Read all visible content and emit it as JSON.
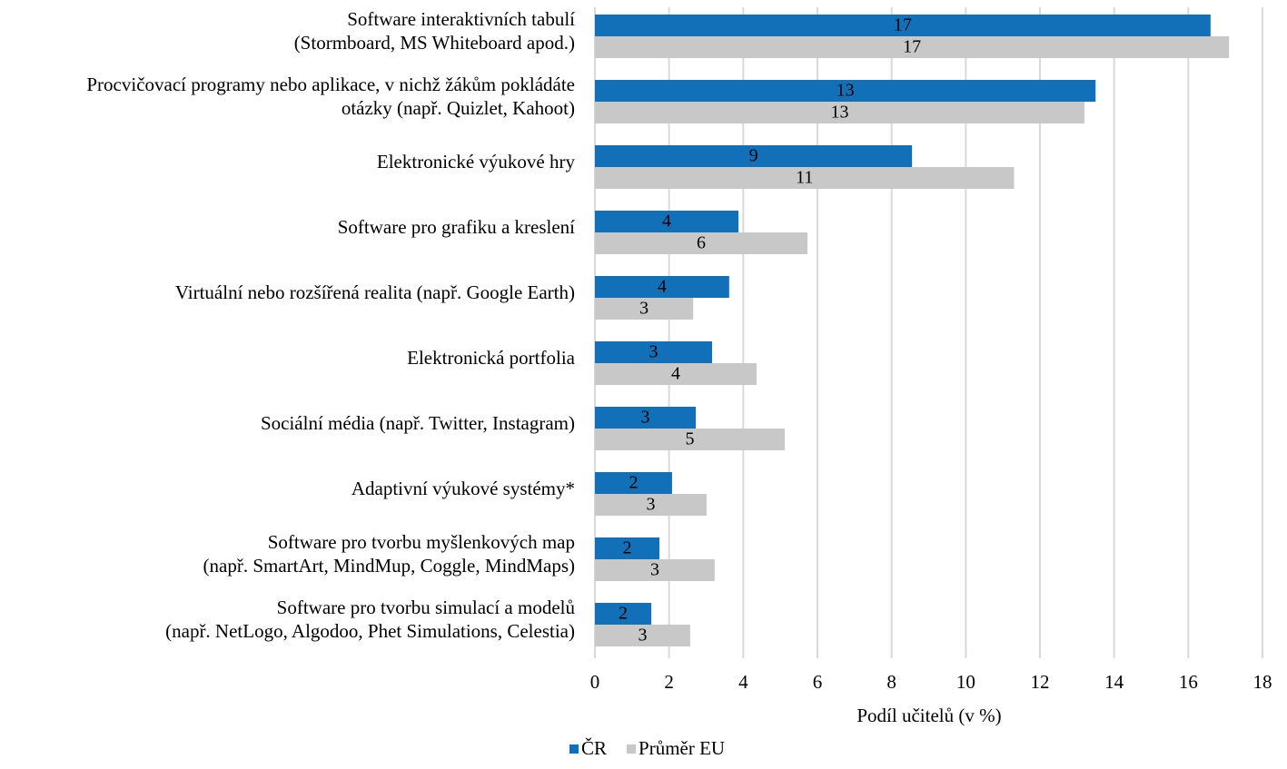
{
  "chart_data": {
    "type": "bar",
    "orientation": "horizontal",
    "categories": [
      [
        "Software interaktivních tabulí",
        "(Stormboard, MS Whiteboard apod.)"
      ],
      [
        "Procvičovací programy nebo aplikace, v nichž žákům pokládáte",
        "otázky (např. Quizlet, Kahoot)"
      ],
      [
        "Elektronické výukové hry"
      ],
      [
        "Software pro grafiku a kreslení"
      ],
      [
        "Virtuální nebo rozšířená realita (např. Google Earth)"
      ],
      [
        "Elektronická portfolia"
      ],
      [
        "Sociální média (např. Twitter, Instagram)"
      ],
      [
        "Adaptivní výukové systémy*"
      ],
      [
        "Software pro tvorbu myšlenkových map",
        "(např. SmartArt, MindMup, Coggle, MindMaps)"
      ],
      [
        "Software pro tvorbu simulací a modelů",
        "(např. NetLogo, Algodoo, Phet Simulations, Celestia)"
      ]
    ],
    "series": [
      {
        "name": "ČR",
        "color": "#1170b8",
        "label_color": "#ffffff",
        "values": [
          16.6,
          13.5,
          8.55,
          3.87,
          3.62,
          3.16,
          2.72,
          2.08,
          1.74,
          1.52
        ],
        "value_labels": [
          "17",
          "13",
          "9",
          "4",
          "4",
          "3",
          "3",
          "2",
          "2",
          "2"
        ]
      },
      {
        "name": "Průměr EU",
        "color": "#c8c8c8",
        "label_color": "#000000",
        "values": [
          17.1,
          13.2,
          11.3,
          5.73,
          2.65,
          4.36,
          5.12,
          3.01,
          3.23,
          2.57
        ],
        "value_labels": [
          "17",
          "13",
          "11",
          "6",
          "3",
          "4",
          "5",
          "3",
          "3",
          "3"
        ]
      }
    ],
    "xlabel": "Podíl učitelů (v %)",
    "xlim": [
      0,
      18
    ],
    "xticks": [
      0,
      2,
      4,
      6,
      8,
      10,
      12,
      14,
      16,
      18
    ],
    "grid": true,
    "legend": "bottom"
  }
}
